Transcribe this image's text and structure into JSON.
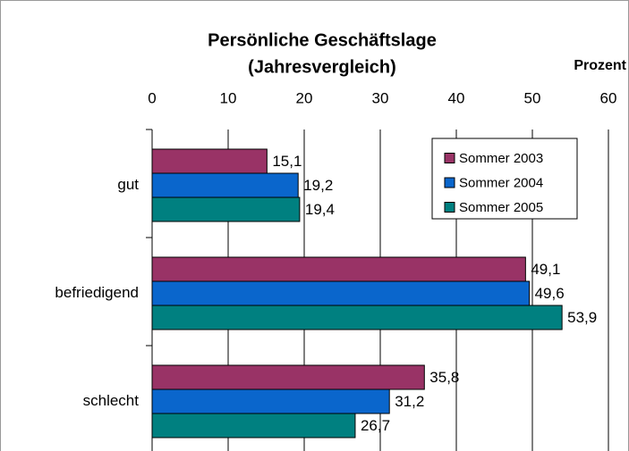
{
  "chart_data": {
    "type": "bar",
    "orientation": "horizontal",
    "title": "Persönliche Geschäftslage",
    "subtitle": "(Jahresvergleich)",
    "x_label": "Prozent",
    "categories": [
      "gut",
      "befriedigend",
      "schlecht"
    ],
    "series": [
      {
        "name": "Sommer 2003",
        "color": "#993366",
        "values": [
          15.1,
          49.1,
          35.8
        ],
        "value_labels": [
          "15,1",
          "49,1",
          "35,8"
        ]
      },
      {
        "name": "Sommer 2004",
        "color": "#0a66cc",
        "values": [
          19.2,
          49.6,
          31.2
        ],
        "value_labels": [
          "19,2",
          "49,6",
          "31,2"
        ]
      },
      {
        "name": "Sommer 2005",
        "color": "#008080",
        "values": [
          19.4,
          53.9,
          26.7
        ],
        "value_labels": [
          "19,4",
          "53,9",
          "26,7"
        ]
      }
    ],
    "xlim": [
      0,
      60
    ],
    "xticks": [
      0,
      10,
      20,
      30,
      40,
      50,
      60
    ],
    "grid": true,
    "legend": "upper right"
  }
}
